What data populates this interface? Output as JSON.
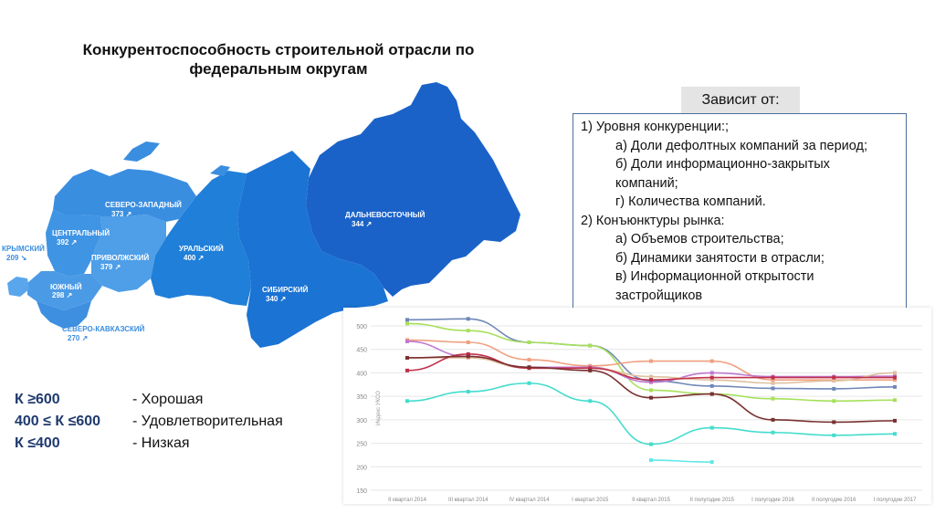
{
  "title": "Конкурентоспособность строительной отрасли по федеральным округам",
  "map": {
    "colors": {
      "base": "#1a72d1",
      "dark": "#0f5bb8",
      "light": "#3b8fe0",
      "label": "#ffffff"
    },
    "regions": [
      {
        "name": "СЕВЕРО-ЗАПАДНЫЙ",
        "value": "373 ↗"
      },
      {
        "name": "ЦЕНТРАЛЬНЫЙ",
        "value": "392 ↗"
      },
      {
        "name": "ПРИВОЛЖСКИЙ",
        "value": "379 ↗"
      },
      {
        "name": "УРАЛЬСКИЙ",
        "value": "400 ↗"
      },
      {
        "name": "СИБИРСКИЙ",
        "value": "340 ↗"
      },
      {
        "name": "ДАЛЬНЕВОСТОЧНЫЙ",
        "value": "344 ↗"
      },
      {
        "name": "КРЫМСКИЙ",
        "value": "209 ↘"
      },
      {
        "name": "ЮЖНЫЙ",
        "value": "298 ↗"
      },
      {
        "name": "СЕВЕРО-КАВКАЗСКИЙ",
        "value": "270 ↗"
      }
    ]
  },
  "depends_label": "Зависит от:",
  "factors": [
    {
      "text": "1) Уровня конкуренции:;",
      "level": 1
    },
    {
      "text": "а) Доли дефолтных компаний за период;",
      "level": 2
    },
    {
      "text": "б) Доли информационно-закрытых",
      "level": 2
    },
    {
      "text": "компаний;",
      "level": 2
    },
    {
      "text": "г) Количества компаний.",
      "level": 2
    },
    {
      "text": "2) Конъюнктуры рынка:",
      "level": 1
    },
    {
      "text": "а) Объемов строительства;",
      "level": 2
    },
    {
      "text": "б) Динамики занятости в отрасли;",
      "level": 2
    },
    {
      "text": "в) Информационной открытости",
      "level": 2
    },
    {
      "text": "застройщиков",
      "level": 2
    }
  ],
  "legend": [
    {
      "k": "К ≥600",
      "d": "- Хорошая"
    },
    {
      "k": "400 ≤ К ≤600",
      "d": "- Удовлетворительная"
    },
    {
      "k": "К ≤400",
      "d": "- Низкая"
    }
  ],
  "chart_data": {
    "type": "line",
    "ylabel": "Индекс УКСО",
    "ylim": [
      150,
      500
    ],
    "yticks": [
      150,
      200,
      250,
      300,
      350,
      400,
      450,
      500
    ],
    "categories": [
      "II квартал 2014",
      "III квартал 2014",
      "IV квартал 2014",
      "I квартал 2015",
      "II квартал 2015",
      "II полугодие 2015",
      "I полугодие 2016",
      "II полугодие 2016",
      "I полугодие 2017"
    ],
    "watermark": "ерзрф.ru",
    "grid": true,
    "series": [
      {
        "color": "#6f87b8",
        "values": [
          513,
          515,
          465,
          458,
          383,
          372,
          367,
          366,
          370
        ]
      },
      {
        "color": "#a6e05a",
        "values": [
          505,
          490,
          465,
          458,
          363,
          355,
          345,
          340,
          342
        ]
      },
      {
        "color": "#f0a080",
        "values": [
          470,
          465,
          428,
          415,
          425,
          425,
          385,
          385,
          385
        ]
      },
      {
        "color": "#c078d0",
        "values": [
          467,
          435,
          412,
          412,
          380,
          400,
          392,
          392,
          393
        ]
      },
      {
        "color": "#e0c0a0",
        "values": [
          432,
          432,
          410,
          410,
          392,
          385,
          378,
          383,
          400
        ]
      },
      {
        "color": "#c0304a",
        "values": [
          405,
          440,
          410,
          410,
          385,
          390,
          390,
          390,
          390
        ]
      },
      {
        "color": "#7a3030",
        "values": [
          432,
          435,
          412,
          405,
          347,
          355,
          300,
          295,
          298
        ]
      },
      {
        "color": "#44dccc",
        "values": [
          340,
          360,
          378,
          340,
          248,
          283,
          273,
          267,
          270
        ]
      },
      {
        "color": "#60e8e8",
        "values": [
          null,
          null,
          null,
          null,
          214,
          210,
          null,
          null,
          null
        ]
      }
    ]
  }
}
